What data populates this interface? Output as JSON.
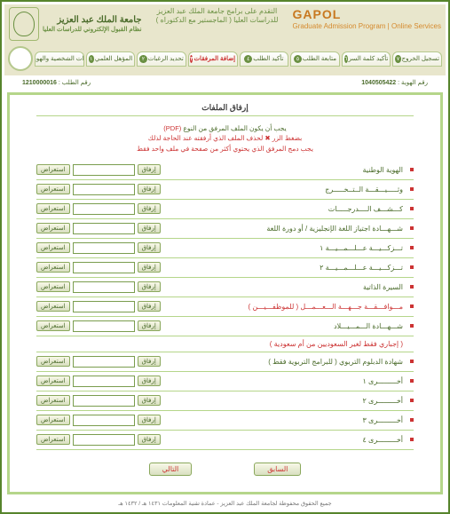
{
  "header": {
    "brand": "GAPOL",
    "brand_sub": "Graduate Admission Program | Online Services",
    "center_line1": "التقدم على برامج جامعة الملك عبد العزيز",
    "center_line2": "للدراسات العليا ( الماجستير مع الدكتوراه )",
    "uni_name": "جامعة الملك عبد العزيز",
    "uni_sub": "نظام القبول الإلكتروني للدراسات العليا"
  },
  "tabs": [
    {
      "num": "٧",
      "label": "تسجيل الخروج"
    },
    {
      "num": "٦",
      "label": "تأكيد كلمة السر"
    },
    {
      "num": "٥",
      "label": "متابعة الطلب"
    },
    {
      "num": "٤",
      "label": "تأكيد الطلب"
    },
    {
      "num": "٣",
      "label": "إضافة المرفقات"
    },
    {
      "num": "٢",
      "label": "تحديد الرغبات"
    },
    {
      "num": "١",
      "label": "المؤهل العلمي"
    },
    {
      "num": "٠",
      "label": "بيانات الشخصية والهوية"
    }
  ],
  "active_tab_index": 4,
  "app_no_label": "رقم الطلب :",
  "app_no": "1210000016",
  "ref_no_label": "رقم الهوية :",
  "ref_no": "1040505422",
  "section_title": "إرفاق الملفات",
  "instructions": {
    "l1_a": "يجب أن يكون الملف المرفق من النوع",
    "l1_b": "(PDF)",
    "l2": "بضغط الزر ✖ لحذف الملف الذي أرفقته عند الحاجة لذلك",
    "l3": "يجب دمج المرفق الذي يحتوي أكثر من صفحة في ملف واحد فقط"
  },
  "btn_upload": "إرفاق",
  "btn_browse": "استعراض",
  "rows": [
    {
      "label": "الهوية الوطنية",
      "red": false
    },
    {
      "label": "وثـــــيـــقـــة الــتــخـــــرج",
      "red": false
    },
    {
      "label": "كـــشـــف الــــدرجـــــات",
      "red": false
    },
    {
      "label": "شـــهـــادة اجتياز اللغة الإنجليزية / أو دورة اللغة",
      "red": false
    },
    {
      "label": "تـــزكـــيـــة عـــلـــمـــيـــة ١",
      "red": false
    },
    {
      "label": "تـــزكـــيـــة عـــلـــمـــيـــة ٢",
      "red": false
    },
    {
      "label": "السيرة الذاتية",
      "red": false
    },
    {
      "label": "مـــوافـــقـــة جـــهـــة الـــعـــمـــل ( للموظفـــيـــن )",
      "red": true
    },
    {
      "label": "شـــهـــادة الـــمـــيـــلاد",
      "red": false
    },
    {
      "label_extra": "( إجباري فقط لغير السعوديين من أم سعودية )",
      "red": true,
      "no_controls": true
    },
    {
      "label": "شهادة الدبلوم التربوي  ( للبرامج التربوية فقط )",
      "red": false
    },
    {
      "label": "أخـــــــــرى ١",
      "red": false
    },
    {
      "label": "أخـــــــــرى ٢",
      "red": false
    },
    {
      "label": "أخـــــــــرى ٣",
      "red": false
    },
    {
      "label": "أخـــــــــرى ٤",
      "red": false
    }
  ],
  "nav_prev": "السابق",
  "nav_next": "التالي",
  "footer": "جميع الحقوق محفوظة لجامعة الملك عبد العزيز - عمادة تقنية المعلومات ١٤٣١ هـ / ١٤٣٢ هـ"
}
